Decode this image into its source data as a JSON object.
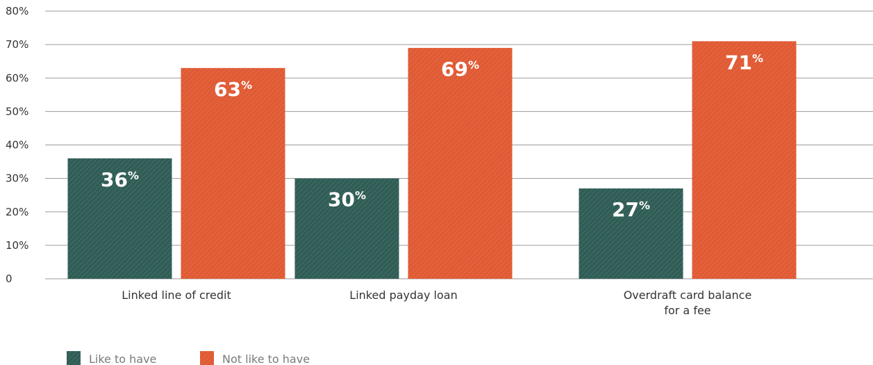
{
  "chart_data": {
    "type": "bar",
    "title": "",
    "xlabel": "",
    "ylabel": "",
    "categories": [
      [
        "Linked line of credit"
      ],
      [
        "Linked payday loan"
      ],
      [
        "Overdraft card balance",
        "for a fee"
      ]
    ],
    "series": [
      {
        "name": "Like to have",
        "color": "#2f5d56",
        "values": [
          36,
          30,
          27
        ]
      },
      {
        "name": "Not like to have",
        "color": "#e05a33",
        "values": [
          63,
          69,
          71
        ]
      }
    ],
    "ylim": [
      0,
      80
    ],
    "yticks": [
      0,
      10,
      20,
      30,
      40,
      50,
      60,
      70,
      80
    ],
    "ytick_labels": [
      "0",
      "10%",
      "20%",
      "30%",
      "40%",
      "50%",
      "60%",
      "70%",
      "80%"
    ],
    "value_suffix": "%",
    "grid": true,
    "legend_position": "bottom-left"
  }
}
